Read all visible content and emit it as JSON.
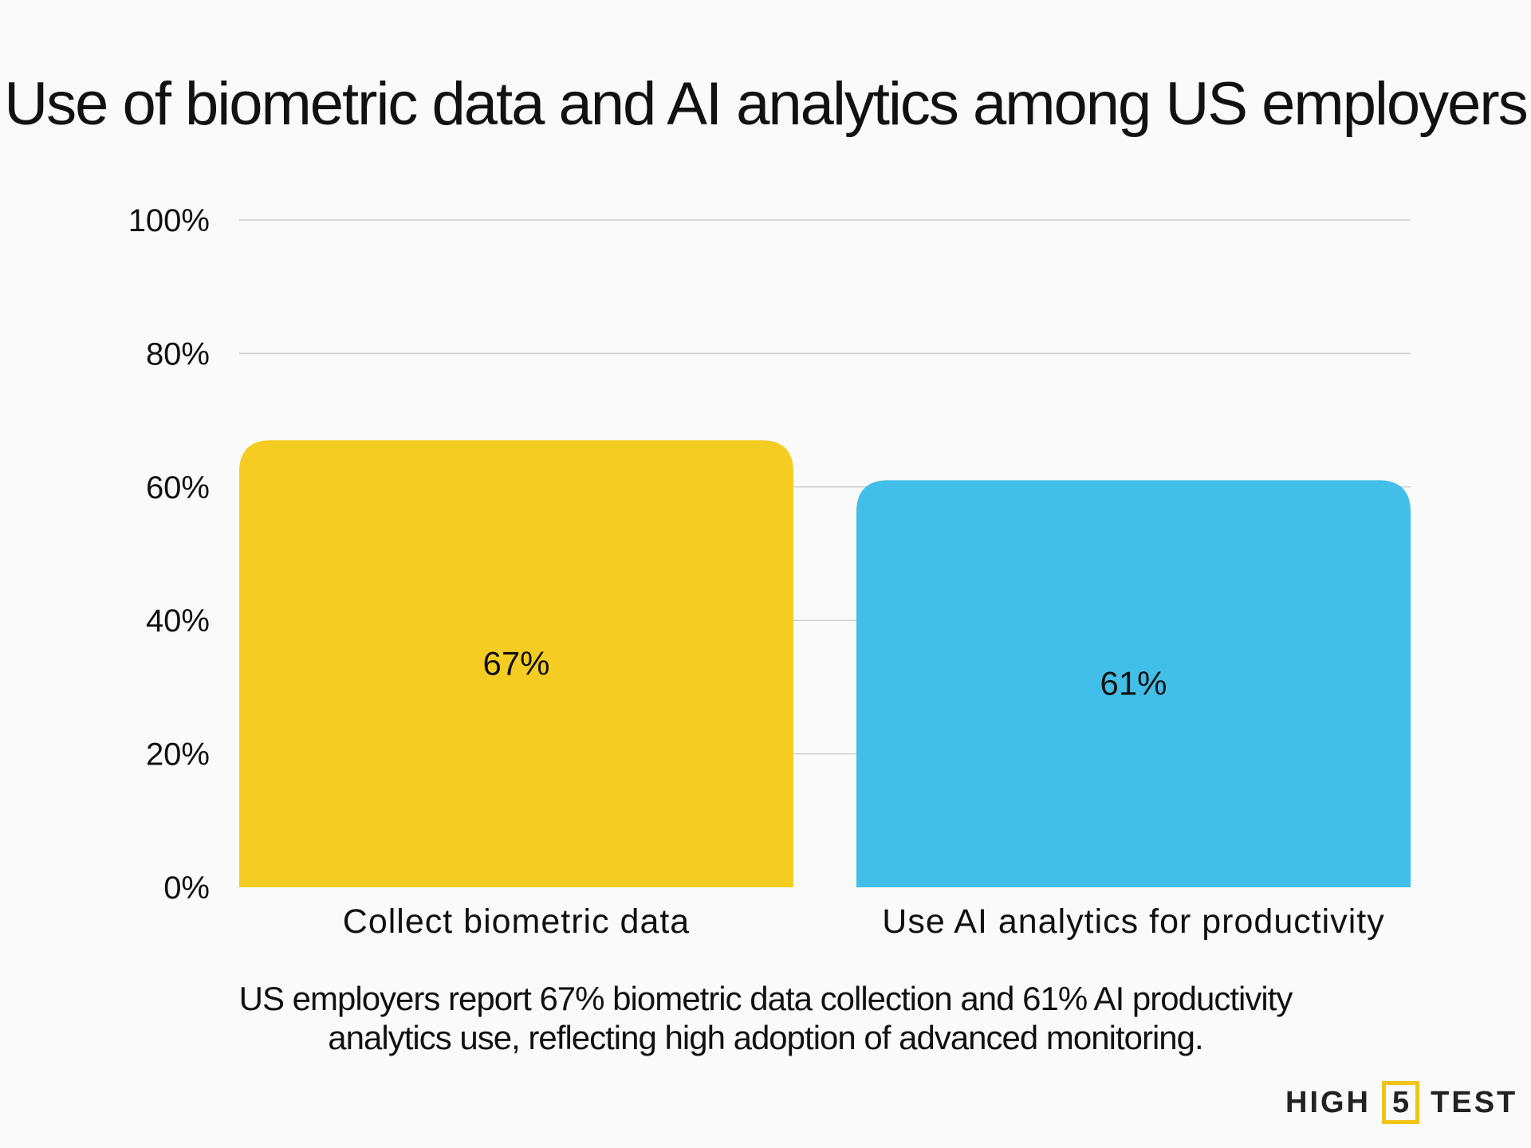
{
  "title": "Use of biometric data and AI analytics among US employers",
  "subtitle_lines": [
    "US employers report 67% biometric data collection and 61% AI productivity",
    "analytics use, reflecting high adoption of advanced monitoring."
  ],
  "logo": {
    "left": "HIGH",
    "mid": "5",
    "right": "TEST"
  },
  "chart_data": {
    "type": "bar",
    "title": "Use of biometric data and AI analytics among US employers",
    "categories": [
      "Collect biometric data",
      "Use AI analytics for productivity"
    ],
    "values": [
      67,
      61
    ],
    "data_labels": [
      "67%",
      "61%"
    ],
    "colors": [
      "#f5cd22",
      "#42bfe8"
    ],
    "ylim": [
      0,
      100
    ],
    "yticks": [
      0,
      20,
      40,
      60,
      80,
      100
    ],
    "ytick_labels": [
      "0%",
      "20%",
      "40%",
      "60%",
      "80%",
      "100%"
    ],
    "grid": true,
    "xlabel": "",
    "ylabel": ""
  }
}
